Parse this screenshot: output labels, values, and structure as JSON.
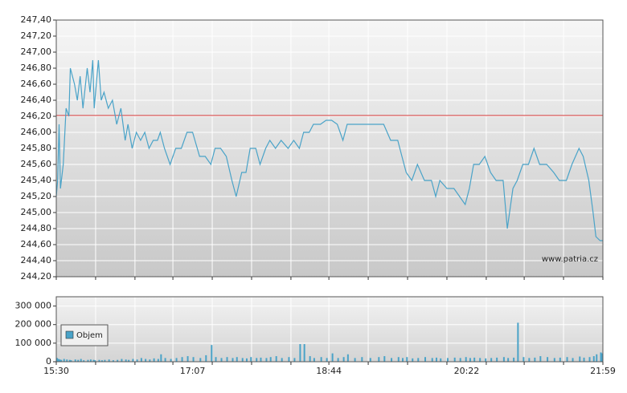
{
  "chart_data": [
    {
      "type": "line",
      "x": [
        "15:30",
        "15:31",
        "15:32",
        "15:33",
        "15:35",
        "15:37",
        "15:39",
        "15:40",
        "15:43",
        "15:45",
        "15:47",
        "15:49",
        "15:52",
        "15:54",
        "15:56",
        "15:57",
        "16:00",
        "16:02",
        "16:04",
        "16:07",
        "16:10",
        "16:13",
        "16:16",
        "16:19",
        "16:21",
        "16:24",
        "16:27",
        "16:30",
        "16:33",
        "16:36",
        "16:39",
        "16:42",
        "16:44",
        "16:47",
        "16:51",
        "16:55",
        "16:59",
        "17:03",
        "17:07",
        "17:12",
        "17:16",
        "17:20",
        "17:23",
        "17:27",
        "17:31",
        "17:35",
        "17:38",
        "17:42",
        "17:45",
        "17:48",
        "17:52",
        "17:55",
        "17:59",
        "18:02",
        "18:06",
        "18:10",
        "18:15",
        "18:19",
        "18:23",
        "18:26",
        "18:30",
        "18:33",
        "18:38",
        "18:42",
        "18:46",
        "18:50",
        "18:54",
        "18:57",
        "19:02",
        "19:07",
        "19:13",
        "19:19",
        "19:23",
        "19:28",
        "19:33",
        "19:36",
        "19:39",
        "19:43",
        "19:47",
        "19:52",
        "19:57",
        "20:00",
        "20:03",
        "20:08",
        "20:13",
        "20:17",
        "20:21",
        "20:24",
        "20:27",
        "20:31",
        "20:35",
        "20:39",
        "20:43",
        "20:48",
        "20:51",
        "20:55",
        "20:58",
        "21:02",
        "21:06",
        "21:10",
        "21:14",
        "21:19",
        "21:24",
        "21:28",
        "21:33",
        "21:37",
        "21:42",
        "21:45",
        "21:49",
        "21:52",
        "21:54",
        "21:57",
        "21:59"
      ],
      "values": [
        245.2,
        245.4,
        246.1,
        245.3,
        245.6,
        246.3,
        246.2,
        246.8,
        246.6,
        246.4,
        246.7,
        246.3,
        246.8,
        246.5,
        246.9,
        246.3,
        246.9,
        246.4,
        246.5,
        246.3,
        246.4,
        246.1,
        246.3,
        245.9,
        246.1,
        245.8,
        246.0,
        245.9,
        246.0,
        245.8,
        245.9,
        245.9,
        246.0,
        245.8,
        245.6,
        245.8,
        245.8,
        246.0,
        246.0,
        245.7,
        245.7,
        245.6,
        245.8,
        245.8,
        245.7,
        245.4,
        245.2,
        245.5,
        245.5,
        245.8,
        245.8,
        245.6,
        245.8,
        245.9,
        245.8,
        245.9,
        245.8,
        245.9,
        245.8,
        246.0,
        246.0,
        246.1,
        246.1,
        246.15,
        246.15,
        246.1,
        245.9,
        246.1,
        246.1,
        246.1,
        246.1,
        246.1,
        246.1,
        245.9,
        245.9,
        245.7,
        245.5,
        245.4,
        245.6,
        245.4,
        245.4,
        245.2,
        245.4,
        245.3,
        245.3,
        245.2,
        245.1,
        245.3,
        245.6,
        245.6,
        245.7,
        245.5,
        245.4,
        245.4,
        244.8,
        245.3,
        245.4,
        245.6,
        245.6,
        245.8,
        245.6,
        245.6,
        245.5,
        245.4,
        245.4,
        245.6,
        245.8,
        245.7,
        245.4,
        245.0,
        244.7,
        244.65,
        244.65
      ],
      "color": "#4aa3c8",
      "reference_line": 246.21,
      "reference_color": "#d03030",
      "xlim": [
        "15:30",
        "21:59"
      ],
      "xgrid": [
        "15:30",
        "15:58",
        "16:26",
        "16:53",
        "17:21",
        "17:49",
        "18:17",
        "18:44",
        "19:12",
        "19:40",
        "20:08",
        "20:36",
        "21:03",
        "21:31",
        "21:59"
      ],
      "ylim": [
        244.2,
        247.4
      ],
      "yticks": [
        {
          "value": 244.2,
          "label": "244,20"
        },
        {
          "value": 244.4,
          "label": "244,40"
        },
        {
          "value": 244.6,
          "label": "244,60"
        },
        {
          "value": 244.8,
          "label": "244,80"
        },
        {
          "value": 245.0,
          "label": "245,00"
        },
        {
          "value": 245.2,
          "label": "245,20"
        },
        {
          "value": 245.4,
          "label": "245,40"
        },
        {
          "value": 245.6,
          "label": "245,60"
        },
        {
          "value": 245.8,
          "label": "245,80"
        },
        {
          "value": 246.0,
          "label": "246,00"
        },
        {
          "value": 246.2,
          "label": "246,20"
        },
        {
          "value": 246.4,
          "label": "246,40"
        },
        {
          "value": 246.6,
          "label": "246,60"
        },
        {
          "value": 246.8,
          "label": "246,80"
        },
        {
          "value": 247.0,
          "label": "247,00"
        },
        {
          "value": 247.2,
          "label": "247,20"
        },
        {
          "value": 247.4,
          "label": "247,40"
        }
      ],
      "grid": true,
      "annotation": "www.patria.cz"
    },
    {
      "type": "bar",
      "x": [
        "15:30",
        "15:31",
        "15:32",
        "15:33",
        "15:35",
        "15:37",
        "15:39",
        "15:40",
        "15:43",
        "15:45",
        "15:47",
        "15:49",
        "15:52",
        "15:54",
        "15:56",
        "15:57",
        "16:00",
        "16:02",
        "16:04",
        "16:07",
        "16:10",
        "16:13",
        "16:16",
        "16:19",
        "16:21",
        "16:24",
        "16:27",
        "16:30",
        "16:33",
        "16:36",
        "16:39",
        "16:42",
        "16:44",
        "16:47",
        "16:51",
        "16:55",
        "16:59",
        "17:03",
        "17:07",
        "17:12",
        "17:16",
        "17:20",
        "17:23",
        "17:27",
        "17:31",
        "17:35",
        "17:38",
        "17:42",
        "17:45",
        "17:48",
        "17:52",
        "17:55",
        "17:59",
        "18:02",
        "18:06",
        "18:10",
        "18:15",
        "18:19",
        "18:23",
        "18:26",
        "18:30",
        "18:33",
        "18:38",
        "18:42",
        "18:46",
        "18:50",
        "18:54",
        "18:57",
        "19:02",
        "19:07",
        "19:13",
        "19:19",
        "19:23",
        "19:28",
        "19:33",
        "19:36",
        "19:39",
        "19:43",
        "19:47",
        "19:52",
        "19:57",
        "20:00",
        "20:03",
        "20:08",
        "20:13",
        "20:17",
        "20:21",
        "20:24",
        "20:27",
        "20:31",
        "20:35",
        "20:39",
        "20:43",
        "20:48",
        "20:51",
        "20:55",
        "20:58",
        "21:02",
        "21:06",
        "21:10",
        "21:14",
        "21:19",
        "21:24",
        "21:28",
        "21:33",
        "21:37",
        "21:42",
        "21:45",
        "21:49",
        "21:52",
        "21:54",
        "21:57",
        "21:59"
      ],
      "series": [
        {
          "name": "Objem",
          "color": "#4aa3c8",
          "values": [
            20000,
            15000,
            12000,
            10000,
            15000,
            12000,
            10000,
            8000,
            12000,
            10000,
            15000,
            8000,
            10000,
            12000,
            10000,
            8000,
            10000,
            8000,
            10000,
            12000,
            8000,
            10000,
            15000,
            12000,
            10000,
            15000,
            12000,
            20000,
            15000,
            12000,
            18000,
            15000,
            40000,
            20000,
            15000,
            20000,
            25000,
            30000,
            25000,
            20000,
            35000,
            90000,
            25000,
            20000,
            25000,
            20000,
            25000,
            20000,
            18000,
            25000,
            20000,
            22000,
            20000,
            25000,
            30000,
            20000,
            25000,
            20000,
            95000,
            95000,
            30000,
            20000,
            25000,
            20000,
            45000,
            20000,
            25000,
            40000,
            20000,
            25000,
            20000,
            25000,
            30000,
            20000,
            25000,
            20000,
            25000,
            18000,
            20000,
            25000,
            20000,
            22000,
            18000,
            20000,
            22000,
            20000,
            25000,
            20000,
            22000,
            20000,
            18000,
            20000,
            22000,
            25000,
            20000,
            22000,
            210000,
            25000,
            20000,
            22000,
            30000,
            25000,
            20000,
            22000,
            25000,
            20000,
            28000,
            22000,
            25000,
            30000,
            40000,
            50000,
            45000
          ]
        }
      ],
      "xlim": [
        "15:30",
        "21:59"
      ],
      "xticks": [
        "15:30",
        "17:07",
        "18:44",
        "20:22",
        "21:59"
      ],
      "xgrid": [
        "15:30",
        "15:58",
        "16:26",
        "16:53",
        "17:21",
        "17:49",
        "18:17",
        "18:44",
        "19:12",
        "19:40",
        "20:08",
        "20:36",
        "21:03",
        "21:31",
        "21:59"
      ],
      "ylim": [
        0,
        350000
      ],
      "yticks": [
        0,
        {
          "value": 100000,
          "label": "100 000"
        },
        {
          "value": 200000,
          "label": "200 000"
        },
        {
          "value": 300000,
          "label": "300 000"
        }
      ],
      "grid": true,
      "legend": "upper-left"
    }
  ]
}
